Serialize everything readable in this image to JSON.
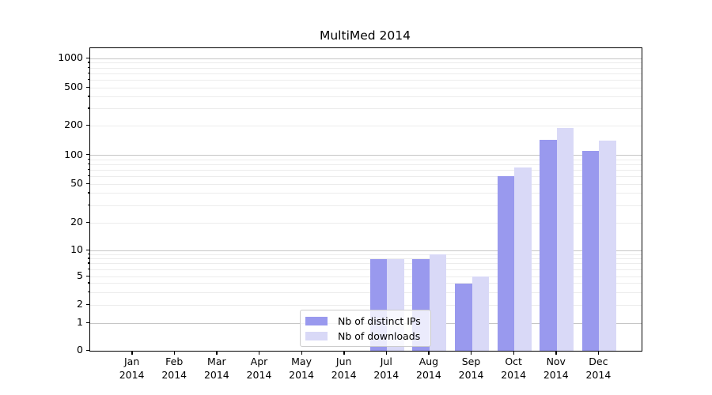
{
  "figure": {
    "title": "MultiMed 2014"
  },
  "chart_data": {
    "type": "bar",
    "title": "MultiMed 2014",
    "categories": [
      "Jan 2014",
      "Feb 2014",
      "Mar 2014",
      "Apr 2014",
      "May 2014",
      "Jun 2014",
      "Jul 2014",
      "Aug 2014",
      "Sep 2014",
      "Oct 2014",
      "Nov 2014",
      "Dec 2014"
    ],
    "x_tick_months": [
      "Jan",
      "Feb",
      "Mar",
      "Apr",
      "May",
      "Jun",
      "Jul",
      "Aug",
      "Sep",
      "Oct",
      "Nov",
      "Dec"
    ],
    "x_tick_year": "2014",
    "series": [
      {
        "name": "Nb of distinct IPs",
        "color": "#9999ee",
        "values": [
          0,
          0,
          0,
          0,
          0,
          0,
          8,
          8,
          4,
          60,
          145,
          110
        ]
      },
      {
        "name": "Nb of downloads",
        "color": "#d9d9f7",
        "values": [
          0,
          0,
          0,
          0,
          0,
          0,
          8,
          9,
          5,
          75,
          190,
          140
        ]
      }
    ],
    "y_axis": {
      "scale": "symlog",
      "ticks": [
        0,
        1,
        2,
        5,
        10,
        20,
        50,
        100,
        200,
        500,
        1000
      ],
      "minor_gridlines": [
        3,
        4,
        6,
        7,
        8,
        9,
        30,
        40,
        60,
        70,
        80,
        90,
        300,
        400,
        600,
        700,
        800,
        900
      ],
      "ylim": [
        0,
        1000
      ]
    },
    "legend": {
      "position": "lower center",
      "entries": [
        "Nb of distinct IPs",
        "Nb of downloads"
      ]
    },
    "grid": true,
    "colors": {
      "major_grid": "#c6c6c6",
      "minor_grid": "#ececec",
      "spine": "#000000",
      "text": "#000000",
      "background": "#ffffff"
    }
  }
}
